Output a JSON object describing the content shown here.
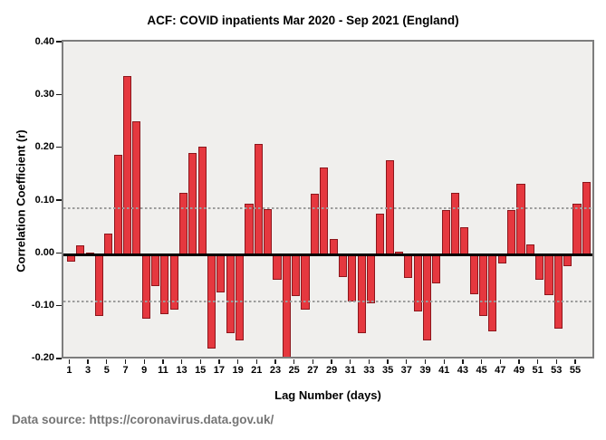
{
  "title": "ACF: COVID inpatients Mar 2020 - Sep 2021 (England)",
  "footer": "Data source: https://coronavirus.data.gov.uk/",
  "chart_data": {
    "type": "bar",
    "title": "ACF: COVID inpatients Mar 2020 - Sep 2021 (England)",
    "xlabel": "Lag Number (days)",
    "ylabel": "Correlation Coefficient (r)",
    "ylim": [
      -0.205,
      0.405
    ],
    "grid": false,
    "legend": null,
    "yticks": [
      0.4,
      0.3,
      0.2,
      0.1,
      0.0,
      -0.1,
      -0.2
    ],
    "ytick_labels": [
      "0.40",
      "0.30",
      "0.20",
      "0.10",
      "0.00",
      "-0.10",
      "-0.20"
    ],
    "xtick_lags": [
      1,
      3,
      5,
      7,
      9,
      11,
      13,
      15,
      17,
      19,
      21,
      23,
      25,
      27,
      29,
      31,
      33,
      35,
      37,
      39,
      41,
      43,
      45,
      47,
      49,
      51,
      53,
      55
    ],
    "xtick_labels": [
      "1",
      "3",
      "5",
      "7",
      "9",
      "11",
      "13",
      "15",
      "17",
      "19",
      "21",
      "23",
      "25",
      "27",
      "29",
      "31",
      "33",
      "35",
      "37",
      "39",
      "41",
      "43",
      "45",
      "47",
      "49",
      "51",
      "53",
      "55"
    ],
    "confidence_limit": 0.088,
    "lags": [
      1,
      2,
      3,
      4,
      5,
      6,
      7,
      8,
      9,
      10,
      11,
      12,
      13,
      14,
      15,
      16,
      17,
      18,
      19,
      20,
      21,
      22,
      23,
      24,
      25,
      26,
      27,
      28,
      29,
      30,
      31,
      32,
      33,
      34,
      35,
      36,
      37,
      38,
      39,
      40,
      41,
      42,
      43,
      44,
      45,
      46,
      47,
      48,
      49,
      50,
      51,
      52,
      53,
      54,
      55,
      56
    ],
    "values": [
      -0.014,
      0.017,
      0.004,
      -0.117,
      0.04,
      0.189,
      0.338,
      0.252,
      -0.122,
      -0.06,
      -0.112,
      -0.104,
      0.117,
      0.192,
      0.204,
      -0.178,
      -0.071,
      -0.148,
      -0.163,
      0.096,
      0.21,
      0.087,
      -0.047,
      -0.196,
      -0.078,
      -0.104,
      0.116,
      0.165,
      0.029,
      -0.042,
      -0.088,
      -0.149,
      -0.092,
      0.078,
      0.179,
      0.006,
      -0.044,
      -0.107,
      -0.162,
      -0.054,
      0.084,
      0.117,
      0.052,
      -0.075,
      -0.116,
      -0.146,
      -0.017,
      0.084,
      0.135,
      0.019,
      -0.048,
      -0.076,
      -0.14,
      -0.022,
      0.097,
      0.137
    ],
    "colors": {
      "bar_fill": "#e5383f",
      "bar_border": "#8c161c",
      "plot_background": "#f0efed",
      "plot_border": "#7d7d7d",
      "zero_line": "#000000",
      "confidence_line": "#9c9c9c",
      "footer_text": "#757575"
    }
  }
}
